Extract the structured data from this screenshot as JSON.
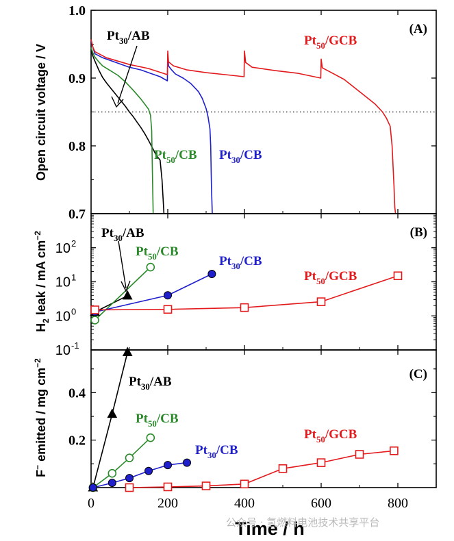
{
  "chart_data": [
    {
      "type": "line",
      "panel": "(A)",
      "ylabel": "Open circuit voltage / V",
      "xlim": [
        0,
        900
      ],
      "ylim": [
        0.7,
        1.0
      ],
      "yticks": [
        "0.7",
        "0.8",
        "0.9",
        "1.0"
      ],
      "reference_line": {
        "y": 0.85,
        "style": "dotted"
      },
      "series": [
        {
          "name": "Pt30/AB",
          "color": "#000000",
          "x": [
            0,
            5,
            10,
            20,
            30,
            40,
            50,
            60,
            70,
            80,
            90,
            100,
            110,
            120,
            130,
            140,
            150,
            160,
            170,
            180,
            185,
            188,
            190
          ],
          "y": [
            0.94,
            0.932,
            0.925,
            0.912,
            0.901,
            0.893,
            0.886,
            0.879,
            0.872,
            0.865,
            0.858,
            0.85,
            0.843,
            0.835,
            0.827,
            0.818,
            0.808,
            0.797,
            0.786,
            0.779,
            0.75,
            0.72,
            0.7
          ]
        },
        {
          "name": "Pt50/CB",
          "color": "#2a8a2a",
          "x": [
            0,
            5,
            10,
            20,
            30,
            50,
            70,
            90,
            110,
            130,
            150,
            155,
            158,
            160,
            162
          ],
          "y": [
            0.945,
            0.937,
            0.931,
            0.924,
            0.918,
            0.911,
            0.904,
            0.894,
            0.882,
            0.869,
            0.854,
            0.845,
            0.823,
            0.76,
            0.7
          ]
        },
        {
          "name": "Pt30/CB",
          "color": "#1f1fcc",
          "x": [
            0,
            5,
            10,
            30,
            50,
            80,
            100,
            130,
            150,
            180,
            199,
            200,
            202,
            210,
            220,
            240,
            260,
            280,
            290,
            300,
            305,
            310,
            312,
            314,
            316
          ],
          "y": [
            0.955,
            0.945,
            0.936,
            0.93,
            0.926,
            0.92,
            0.916,
            0.912,
            0.908,
            0.902,
            0.896,
            0.935,
            0.918,
            0.912,
            0.906,
            0.9,
            0.892,
            0.88,
            0.87,
            0.855,
            0.843,
            0.825,
            0.8,
            0.74,
            0.7
          ]
        },
        {
          "name": "Pt50/GCB",
          "color": "#e31a1c",
          "x": [
            0,
            5,
            10,
            40,
            100,
            150,
            199,
            200,
            202,
            215,
            250,
            300,
            350,
            399,
            400,
            403,
            420,
            480,
            540,
            599,
            600,
            603,
            620,
            660,
            700,
            740,
            760,
            770,
            780,
            785,
            790,
            792,
            794
          ],
          "y": [
            0.957,
            0.945,
            0.939,
            0.93,
            0.92,
            0.914,
            0.905,
            0.94,
            0.924,
            0.918,
            0.912,
            0.908,
            0.905,
            0.902,
            0.94,
            0.923,
            0.916,
            0.911,
            0.907,
            0.9,
            0.928,
            0.915,
            0.91,
            0.898,
            0.88,
            0.862,
            0.85,
            0.841,
            0.829,
            0.8,
            0.74,
            0.71,
            0.7
          ]
        }
      ],
      "annotations": [
        {
          "base": "Pt",
          "sub": "30",
          "suffix": "/AB",
          "color": "#000000",
          "arrow": true
        },
        {
          "base": "Pt",
          "sub": "50",
          "suffix": "/CB",
          "color": "#2a8a2a"
        },
        {
          "base": "Pt",
          "sub": "30",
          "suffix": "/CB",
          "color": "#1f1fcc"
        },
        {
          "base": "Pt",
          "sub": "50",
          "suffix": "/GCB",
          "color": "#e31a1c"
        }
      ]
    },
    {
      "type": "line",
      "panel": "(B)",
      "ylabel": "H2 leak / mA cm−2",
      "yscale": "log",
      "xlim": [
        0,
        900
      ],
      "ylim": [
        0.1,
        1000
      ],
      "series": [
        {
          "name": "Pt30/AB",
          "color": "#000000",
          "marker": "filled-triangle",
          "x": [
            10,
            95
          ],
          "y": [
            1.3,
            3.9
          ]
        },
        {
          "name": "Pt50/CB",
          "color": "#2a8a2a",
          "marker": "open-circle",
          "x": [
            10,
            155
          ],
          "y": [
            0.75,
            27
          ]
        },
        {
          "name": "Pt30/CB",
          "color": "#1f1fcc",
          "marker": "filled-circle",
          "x": [
            10,
            200,
            315
          ],
          "y": [
            1.3,
            4.0,
            17
          ]
        },
        {
          "name": "Pt50/GCB",
          "color": "#e31a1c",
          "marker": "open-square",
          "x": [
            10,
            200,
            400,
            600,
            800
          ],
          "y": [
            1.5,
            1.55,
            1.75,
            2.6,
            15
          ]
        }
      ],
      "annotations": [
        {
          "base": "Pt",
          "sub": "30",
          "suffix": "/AB",
          "color": "#000000",
          "arrow": true
        },
        {
          "base": "Pt",
          "sub": "50",
          "suffix": "/CB",
          "color": "#2a8a2a"
        },
        {
          "base": "Pt",
          "sub": "30",
          "suffix": "/CB",
          "color": "#1f1fcc"
        },
        {
          "base": "Pt",
          "sub": "50",
          "suffix": "/GCB",
          "color": "#e31a1c"
        }
      ]
    },
    {
      "type": "line",
      "panel": "(C)",
      "ylabel": "F− emitted / mg cm−2",
      "xlabel": "Time / h",
      "xlim": [
        0,
        900
      ],
      "ylim": [
        0,
        0.58
      ],
      "xticks": [
        "0",
        "200",
        "400",
        "600",
        "800"
      ],
      "yticks": [
        "0.2",
        "0.4"
      ],
      "series": [
        {
          "name": "Pt30/AB",
          "color": "#000000",
          "marker": "filled-triangle",
          "x": [
            5,
            55,
            95
          ],
          "y": [
            0,
            0.31,
            0.57
          ]
        },
        {
          "name": "Pt50/CB",
          "color": "#2a8a2a",
          "marker": "open-circle",
          "x": [
            5,
            55,
            100,
            155
          ],
          "y": [
            0,
            0.06,
            0.125,
            0.21
          ]
        },
        {
          "name": "Pt30/CB",
          "color": "#1f1fcc",
          "marker": "filled-circle",
          "x": [
            5,
            55,
            100,
            150,
            200,
            250
          ],
          "y": [
            0,
            0.02,
            0.04,
            0.07,
            0.095,
            0.105
          ]
        },
        {
          "name": "Pt50/GCB",
          "color": "#e31a1c",
          "marker": "open-square",
          "x": [
            100,
            200,
            300,
            400,
            500,
            600,
            700,
            790
          ],
          "y": [
            0,
            0.003,
            0.007,
            0.015,
            0.08,
            0.105,
            0.14,
            0.155
          ]
        }
      ],
      "annotations": [
        {
          "base": "Pt",
          "sub": "30",
          "suffix": "/AB",
          "color": "#000000"
        },
        {
          "base": "Pt",
          "sub": "50",
          "suffix": "/CB",
          "color": "#2a8a2a"
        },
        {
          "base": "Pt",
          "sub": "30",
          "suffix": "/CB",
          "color": "#1f1fcc"
        },
        {
          "base": "Pt",
          "sub": "50",
          "suffix": "/GCB",
          "color": "#e31a1c"
        }
      ]
    }
  ],
  "watermark": "公众号 · 氢燃料电池技术共享平台"
}
